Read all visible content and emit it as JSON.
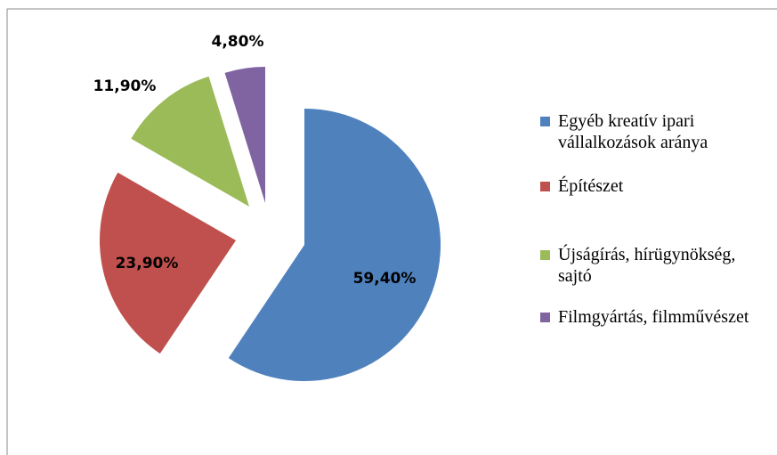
{
  "chart_data": {
    "type": "pie",
    "categories": [
      "Egyéb kreatív ipari vállalkozások aránya",
      "Építészet",
      "Újságírás, hírügynökség, sajtó",
      "Filmgyártás, filmművészet"
    ],
    "values": [
      59.4,
      23.9,
      11.9,
      4.8
    ],
    "value_labels": [
      "59,40%",
      "23,90%",
      "11,90%",
      "4,80%"
    ],
    "colors": [
      "#4f81bd",
      "#c0504d",
      "#9bbb59",
      "#8064a2"
    ]
  }
}
